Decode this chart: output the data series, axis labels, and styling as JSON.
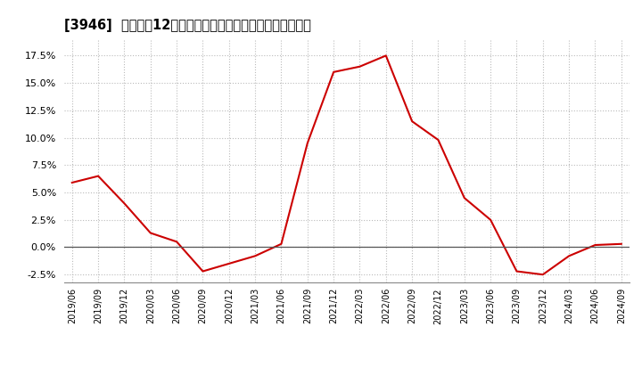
{
  "title": "[3946]  売上高の12か月移動合計の対前年同期増減率の推移",
  "line_color": "#cc0000",
  "background_color": "#ffffff",
  "grid_color": "#bbbbbb",
  "ylim": [
    -0.032,
    0.19
  ],
  "yticks": [
    -0.025,
    0.0,
    0.025,
    0.05,
    0.075,
    0.1,
    0.125,
    0.15,
    0.175
  ],
  "dates": [
    "2019/06",
    "2019/09",
    "2019/12",
    "2020/03",
    "2020/06",
    "2020/09",
    "2020/12",
    "2021/03",
    "2021/06",
    "2021/09",
    "2021/12",
    "2022/03",
    "2022/06",
    "2022/09",
    "2022/12",
    "2023/03",
    "2023/06",
    "2023/09",
    "2023/12",
    "2024/03",
    "2024/06",
    "2024/09"
  ],
  "values": [
    0.059,
    0.065,
    0.04,
    0.013,
    0.005,
    -0.022,
    -0.015,
    -0.008,
    0.003,
    0.095,
    0.16,
    0.165,
    0.175,
    0.115,
    0.098,
    0.045,
    0.025,
    -0.022,
    -0.025,
    -0.008,
    0.002,
    0.003
  ]
}
